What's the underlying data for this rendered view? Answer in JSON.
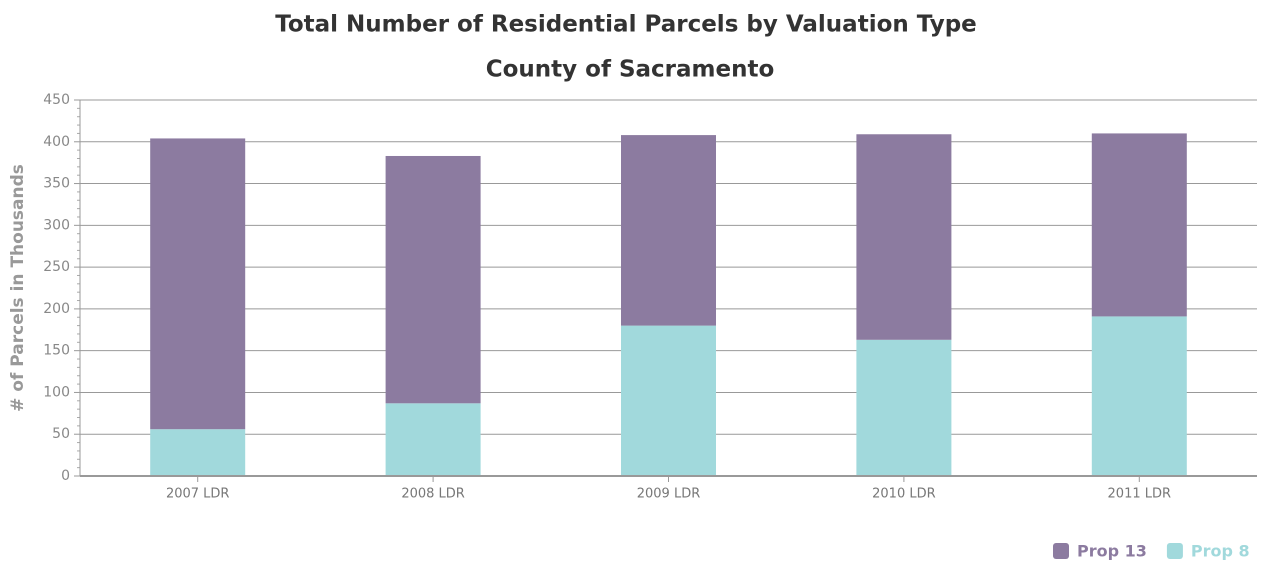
{
  "chart_data": {
    "type": "stacked_bar",
    "title": "Total Number of Residential Parcels by Valuation Type",
    "subtitle": "County of Sacramento",
    "y_label": "# of Parcels in Thousands",
    "categories": [
      "2007 LDR",
      "2008 LDR",
      "2009 LDR",
      "2010 LDR",
      "2011 LDR"
    ],
    "series": [
      {
        "name": "Prop 13",
        "color": "#8c7ba0",
        "values": [
          348,
          296,
          228,
          246,
          219
        ]
      },
      {
        "name": "Prop 8",
        "color": "#a1d9dc",
        "values": [
          56,
          87,
          180,
          163,
          191
        ]
      }
    ],
    "stack_order": "last-at-bottom",
    "ylim": [
      0,
      450
    ],
    "yticks": [
      0,
      50,
      100,
      150,
      200,
      250,
      300,
      350,
      400,
      450
    ],
    "grid": true,
    "legend": "bottom-right"
  }
}
